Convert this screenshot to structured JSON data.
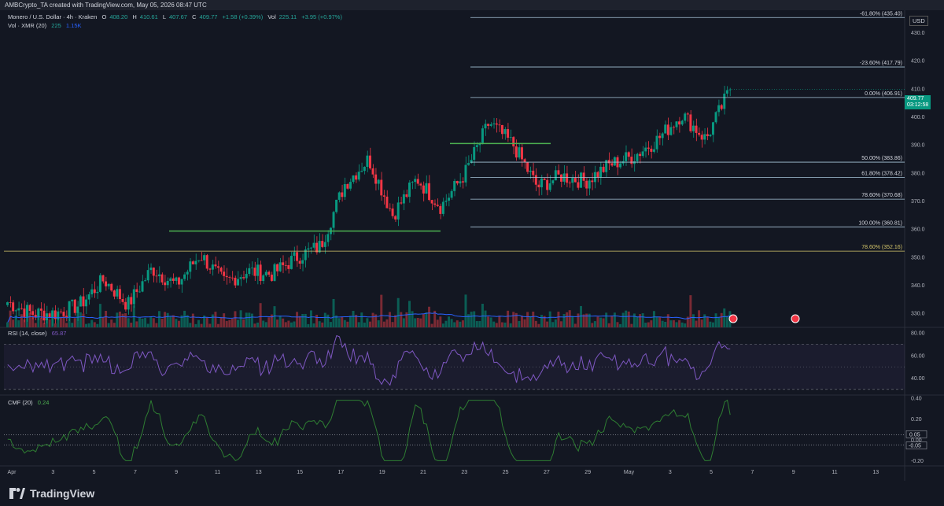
{
  "header": {
    "attribution": "AMBCrypto_TA created with TradingView.com, May 05, 2026 08:47 UTC"
  },
  "legend": {
    "symbol": "Monero / U.S. Dollar · 4h · Kraken",
    "o_label": "O",
    "o": "408.20",
    "h_label": "H",
    "h": "410.61",
    "l_label": "L",
    "l": "407.67",
    "c_label": "C",
    "c": "409.77",
    "chg": "+1.58 (+0.39%)",
    "vol_label": "Vol",
    "vol": "225.11",
    "vol_chg": "+3.95 (+0.97%)",
    "vol_ind": "Vol · XMR (20)",
    "vol_val1": "225",
    "vol_val2": "1.15K",
    "rsi_label": "RSI (14, close)",
    "rsi_val": "65.87",
    "cmf_label": "CMF (20)",
    "cmf_val": "0.24"
  },
  "currency": "USD",
  "last_price": {
    "price": "409.77",
    "timer": "03:12:58"
  },
  "colors": {
    "up": "#089981",
    "down": "#f23645",
    "fib_line": "#a7c4d8",
    "green_level": "#4caf50",
    "yellow_level": "#d4c56a",
    "rsi": "#7e57c2",
    "cmf": "#2e7d32",
    "vol_ma": "#2962ff"
  },
  "chart_data": {
    "type": "candlestick",
    "price_axis": {
      "ticks": [
        330,
        340,
        350,
        360,
        370,
        380,
        390,
        400,
        410,
        420,
        430
      ],
      "range": [
        325,
        438
      ]
    },
    "x_axis": {
      "labels": [
        "Apr",
        "3",
        "5",
        "7",
        "9",
        "11",
        "13",
        "15",
        "17",
        "19",
        "21",
        "23",
        "25",
        "27",
        "29",
        "May",
        "3",
        "5",
        "7",
        "9",
        "11",
        "13"
      ]
    },
    "fib_levels": [
      {
        "label": "-61.80% (435.40)",
        "price": 435.4
      },
      {
        "label": "-23.60% (417.79)",
        "price": 417.79
      },
      {
        "label": "0.00% (406.91)",
        "price": 406.91
      },
      {
        "label": "50.00% (383.86)",
        "price": 383.86
      },
      {
        "label": "61.80% (378.42)",
        "price": 378.42
      },
      {
        "label": "78.60% (370.68)",
        "price": 370.68
      },
      {
        "label": "100.00% (360.81)",
        "price": 360.81
      }
    ],
    "yellow_level": {
      "label": "78.60% (352.16)",
      "price": 352.16
    },
    "green_levels": [
      {
        "price": 359.3
      },
      {
        "price": 390.5
      }
    ],
    "key_closes": [
      {
        "time": "Apr 1",
        "close": 334
      },
      {
        "time": "Apr 3",
        "close": 330
      },
      {
        "time": "Apr 5",
        "close": 330
      },
      {
        "time": "Apr 7",
        "close": 333
      },
      {
        "time": "Apr 8",
        "close": 342
      },
      {
        "time": "Apr 9",
        "close": 333
      },
      {
        "time": "Apr 10",
        "close": 346
      },
      {
        "time": "Apr 12",
        "close": 340
      },
      {
        "time": "Apr 14",
        "close": 351
      },
      {
        "time": "Apr 15",
        "close": 341
      },
      {
        "time": "Apr 17",
        "close": 345
      },
      {
        "time": "Apr 19",
        "close": 344
      },
      {
        "time": "Apr 20",
        "close": 350
      },
      {
        "time": "Apr 21",
        "close": 354
      },
      {
        "time": "Apr 21",
        "close": 376
      },
      {
        "time": "Apr 22",
        "close": 385
      },
      {
        "time": "Apr 23",
        "close": 365
      },
      {
        "time": "Apr 24",
        "close": 378
      },
      {
        "time": "Apr 25",
        "close": 368
      },
      {
        "time": "Apr 26",
        "close": 380
      },
      {
        "time": "Apr 26",
        "close": 398
      },
      {
        "time": "Apr 27",
        "close": 390
      },
      {
        "time": "Apr 28",
        "close": 375
      },
      {
        "time": "Apr 29",
        "close": 379
      },
      {
        "time": "Apr 30",
        "close": 377
      },
      {
        "time": "May 1",
        "close": 383
      },
      {
        "time": "May 2",
        "close": 386
      },
      {
        "time": "May 3",
        "close": 392
      },
      {
        "time": "May 4",
        "close": 401
      },
      {
        "time": "May 4",
        "close": 392
      },
      {
        "time": "May 5",
        "close": 409.77
      }
    ],
    "rsi": {
      "ticks": [
        40,
        60,
        80
      ],
      "levels": [
        70,
        30
      ],
      "range": [
        25,
        85
      ],
      "last": 65.87
    },
    "cmf": {
      "ticks": [
        -0.2,
        0,
        0.2,
        0.4
      ],
      "labels": [
        "0.05",
        "-0.05"
      ],
      "range": [
        -0.25,
        0.43
      ],
      "last": 0.24
    }
  },
  "footer": {
    "brand": "TradingView"
  }
}
